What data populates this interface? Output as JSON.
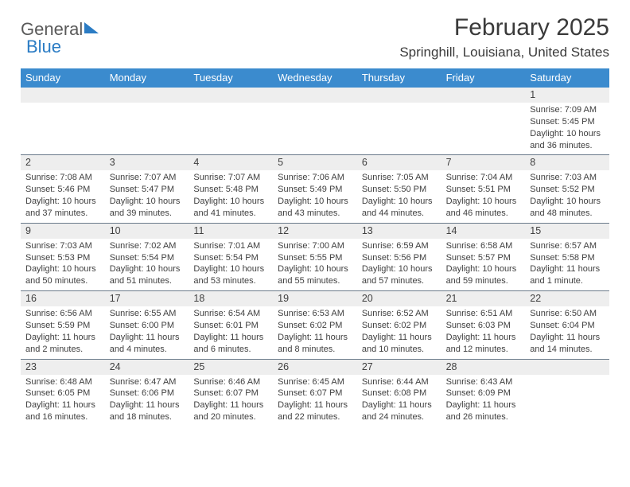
{
  "logo": {
    "text_gray": "General",
    "text_blue": "Blue"
  },
  "title": "February 2025",
  "location": "Springhill, Louisiana, United States",
  "colors": {
    "header_bg": "#3b8bce",
    "header_text": "#ffffff",
    "daynum_bg": "#eeeeee",
    "border": "#6a7a8a",
    "text": "#3a3a3a",
    "logo_blue": "#2b7cc4"
  },
  "day_names": [
    "Sunday",
    "Monday",
    "Tuesday",
    "Wednesday",
    "Thursday",
    "Friday",
    "Saturday"
  ],
  "weeks": [
    [
      {
        "day": "",
        "sunrise": "",
        "sunset": "",
        "daylight1": "",
        "daylight2": ""
      },
      {
        "day": "",
        "sunrise": "",
        "sunset": "",
        "daylight1": "",
        "daylight2": ""
      },
      {
        "day": "",
        "sunrise": "",
        "sunset": "",
        "daylight1": "",
        "daylight2": ""
      },
      {
        "day": "",
        "sunrise": "",
        "sunset": "",
        "daylight1": "",
        "daylight2": ""
      },
      {
        "day": "",
        "sunrise": "",
        "sunset": "",
        "daylight1": "",
        "daylight2": ""
      },
      {
        "day": "",
        "sunrise": "",
        "sunset": "",
        "daylight1": "",
        "daylight2": ""
      },
      {
        "day": "1",
        "sunrise": "Sunrise: 7:09 AM",
        "sunset": "Sunset: 5:45 PM",
        "daylight1": "Daylight: 10 hours",
        "daylight2": "and 36 minutes."
      }
    ],
    [
      {
        "day": "2",
        "sunrise": "Sunrise: 7:08 AM",
        "sunset": "Sunset: 5:46 PM",
        "daylight1": "Daylight: 10 hours",
        "daylight2": "and 37 minutes."
      },
      {
        "day": "3",
        "sunrise": "Sunrise: 7:07 AM",
        "sunset": "Sunset: 5:47 PM",
        "daylight1": "Daylight: 10 hours",
        "daylight2": "and 39 minutes."
      },
      {
        "day": "4",
        "sunrise": "Sunrise: 7:07 AM",
        "sunset": "Sunset: 5:48 PM",
        "daylight1": "Daylight: 10 hours",
        "daylight2": "and 41 minutes."
      },
      {
        "day": "5",
        "sunrise": "Sunrise: 7:06 AM",
        "sunset": "Sunset: 5:49 PM",
        "daylight1": "Daylight: 10 hours",
        "daylight2": "and 43 minutes."
      },
      {
        "day": "6",
        "sunrise": "Sunrise: 7:05 AM",
        "sunset": "Sunset: 5:50 PM",
        "daylight1": "Daylight: 10 hours",
        "daylight2": "and 44 minutes."
      },
      {
        "day": "7",
        "sunrise": "Sunrise: 7:04 AM",
        "sunset": "Sunset: 5:51 PM",
        "daylight1": "Daylight: 10 hours",
        "daylight2": "and 46 minutes."
      },
      {
        "day": "8",
        "sunrise": "Sunrise: 7:03 AM",
        "sunset": "Sunset: 5:52 PM",
        "daylight1": "Daylight: 10 hours",
        "daylight2": "and 48 minutes."
      }
    ],
    [
      {
        "day": "9",
        "sunrise": "Sunrise: 7:03 AM",
        "sunset": "Sunset: 5:53 PM",
        "daylight1": "Daylight: 10 hours",
        "daylight2": "and 50 minutes."
      },
      {
        "day": "10",
        "sunrise": "Sunrise: 7:02 AM",
        "sunset": "Sunset: 5:54 PM",
        "daylight1": "Daylight: 10 hours",
        "daylight2": "and 51 minutes."
      },
      {
        "day": "11",
        "sunrise": "Sunrise: 7:01 AM",
        "sunset": "Sunset: 5:54 PM",
        "daylight1": "Daylight: 10 hours",
        "daylight2": "and 53 minutes."
      },
      {
        "day": "12",
        "sunrise": "Sunrise: 7:00 AM",
        "sunset": "Sunset: 5:55 PM",
        "daylight1": "Daylight: 10 hours",
        "daylight2": "and 55 minutes."
      },
      {
        "day": "13",
        "sunrise": "Sunrise: 6:59 AM",
        "sunset": "Sunset: 5:56 PM",
        "daylight1": "Daylight: 10 hours",
        "daylight2": "and 57 minutes."
      },
      {
        "day": "14",
        "sunrise": "Sunrise: 6:58 AM",
        "sunset": "Sunset: 5:57 PM",
        "daylight1": "Daylight: 10 hours",
        "daylight2": "and 59 minutes."
      },
      {
        "day": "15",
        "sunrise": "Sunrise: 6:57 AM",
        "sunset": "Sunset: 5:58 PM",
        "daylight1": "Daylight: 11 hours",
        "daylight2": "and 1 minute."
      }
    ],
    [
      {
        "day": "16",
        "sunrise": "Sunrise: 6:56 AM",
        "sunset": "Sunset: 5:59 PM",
        "daylight1": "Daylight: 11 hours",
        "daylight2": "and 2 minutes."
      },
      {
        "day": "17",
        "sunrise": "Sunrise: 6:55 AM",
        "sunset": "Sunset: 6:00 PM",
        "daylight1": "Daylight: 11 hours",
        "daylight2": "and 4 minutes."
      },
      {
        "day": "18",
        "sunrise": "Sunrise: 6:54 AM",
        "sunset": "Sunset: 6:01 PM",
        "daylight1": "Daylight: 11 hours",
        "daylight2": "and 6 minutes."
      },
      {
        "day": "19",
        "sunrise": "Sunrise: 6:53 AM",
        "sunset": "Sunset: 6:02 PM",
        "daylight1": "Daylight: 11 hours",
        "daylight2": "and 8 minutes."
      },
      {
        "day": "20",
        "sunrise": "Sunrise: 6:52 AM",
        "sunset": "Sunset: 6:02 PM",
        "daylight1": "Daylight: 11 hours",
        "daylight2": "and 10 minutes."
      },
      {
        "day": "21",
        "sunrise": "Sunrise: 6:51 AM",
        "sunset": "Sunset: 6:03 PM",
        "daylight1": "Daylight: 11 hours",
        "daylight2": "and 12 minutes."
      },
      {
        "day": "22",
        "sunrise": "Sunrise: 6:50 AM",
        "sunset": "Sunset: 6:04 PM",
        "daylight1": "Daylight: 11 hours",
        "daylight2": "and 14 minutes."
      }
    ],
    [
      {
        "day": "23",
        "sunrise": "Sunrise: 6:48 AM",
        "sunset": "Sunset: 6:05 PM",
        "daylight1": "Daylight: 11 hours",
        "daylight2": "and 16 minutes."
      },
      {
        "day": "24",
        "sunrise": "Sunrise: 6:47 AM",
        "sunset": "Sunset: 6:06 PM",
        "daylight1": "Daylight: 11 hours",
        "daylight2": "and 18 minutes."
      },
      {
        "day": "25",
        "sunrise": "Sunrise: 6:46 AM",
        "sunset": "Sunset: 6:07 PM",
        "daylight1": "Daylight: 11 hours",
        "daylight2": "and 20 minutes."
      },
      {
        "day": "26",
        "sunrise": "Sunrise: 6:45 AM",
        "sunset": "Sunset: 6:07 PM",
        "daylight1": "Daylight: 11 hours",
        "daylight2": "and 22 minutes."
      },
      {
        "day": "27",
        "sunrise": "Sunrise: 6:44 AM",
        "sunset": "Sunset: 6:08 PM",
        "daylight1": "Daylight: 11 hours",
        "daylight2": "and 24 minutes."
      },
      {
        "day": "28",
        "sunrise": "Sunrise: 6:43 AM",
        "sunset": "Sunset: 6:09 PM",
        "daylight1": "Daylight: 11 hours",
        "daylight2": "and 26 minutes."
      },
      {
        "day": "",
        "sunrise": "",
        "sunset": "",
        "daylight1": "",
        "daylight2": ""
      }
    ]
  ]
}
